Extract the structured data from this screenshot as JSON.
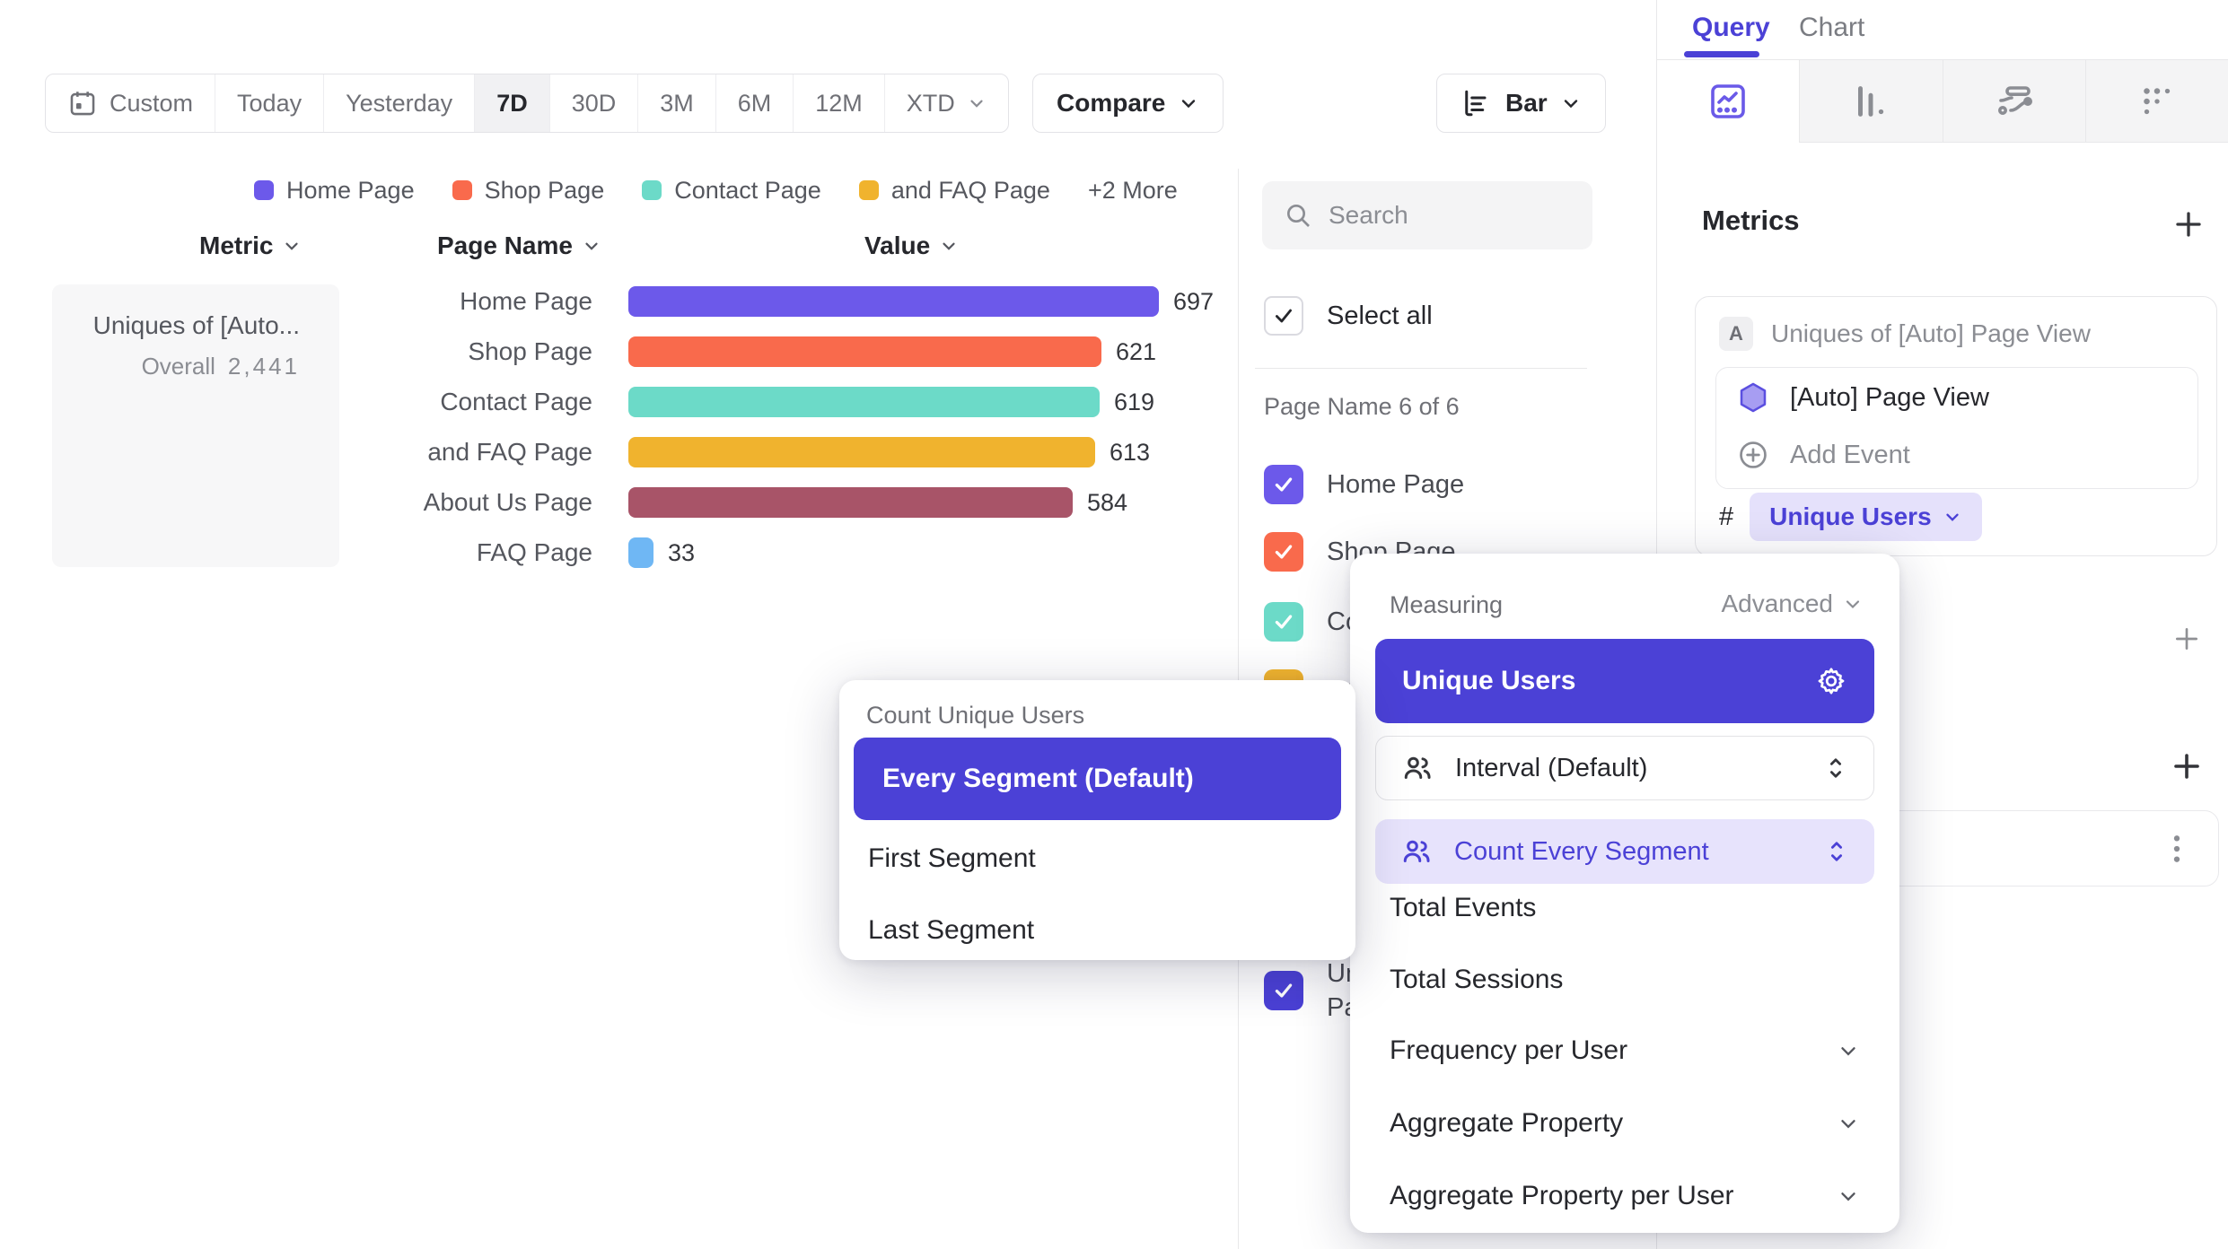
{
  "toolbar": {
    "date_ranges": [
      "Custom",
      "Today",
      "Yesterday",
      "7D",
      "30D",
      "3M",
      "6M",
      "12M",
      "XTD"
    ],
    "selected_range": "7D",
    "compare_label": "Compare",
    "chart_type_label": "Bar"
  },
  "legend": {
    "items": [
      {
        "label": "Home Page",
        "color": "#6C59EA"
      },
      {
        "label": "Shop Page",
        "color": "#F96A4C"
      },
      {
        "label": "Contact Page",
        "color": "#6CDAC8"
      },
      {
        "label": "and FAQ Page",
        "color": "#F0B32E"
      }
    ],
    "more_label": "+2 More"
  },
  "columns": {
    "metric": "Metric",
    "page_name": "Page Name",
    "value": "Value"
  },
  "metric_card": {
    "title": "Uniques of [Auto...",
    "overall_label": "Overall",
    "overall_value": "2,441"
  },
  "chart_data": {
    "type": "bar",
    "orientation": "horizontal",
    "series_name": "Uniques of [Auto] Page View",
    "categories": [
      "Home Page",
      "Shop Page",
      "Contact Page",
      "and FAQ Page",
      "About Us Page",
      "FAQ Page"
    ],
    "values": [
      697,
      621,
      619,
      613,
      584,
      33
    ],
    "colors": [
      "#6C59EA",
      "#F96A4C",
      "#6CDAC8",
      "#F0B32E",
      "#A85468",
      "#6FB7F4"
    ],
    "overall_total": 2441,
    "xlabel": "Value",
    "ylabel": "Page Name"
  },
  "filter_panel": {
    "search_placeholder": "Search",
    "select_all_label": "Select all",
    "group_label": "Page Name 6 of 6",
    "items": [
      {
        "label": "Home Page",
        "color": "#6C59EA",
        "checked": true
      },
      {
        "label": "Shop Page",
        "color": "#F96A4C",
        "checked": true
      },
      {
        "label": "Contact Page",
        "color": "#6CDAC8",
        "checked": true
      },
      {
        "label": "and FAQ Page",
        "color": "#F0B32E",
        "checked": true
      },
      {
        "label": "About Us Page",
        "color": "#A85468",
        "checked": true
      },
      {
        "label": "FAQ Page",
        "color": "#6FB7F4",
        "checked": true
      }
    ],
    "metric_item": {
      "label": "Uniques of [Auto] Page View",
      "color": "#4B41D6",
      "checked": true
    }
  },
  "query_panel": {
    "tabs": {
      "query": "Query",
      "chart": "Chart"
    },
    "metrics_header": "Metrics",
    "metric_row": {
      "badge": "A",
      "title": "Uniques of [Auto] Page View"
    },
    "event_row": {
      "name": "[Auto] Page View"
    },
    "add_event_label": "Add Event",
    "measure_prefix": "#",
    "measure_pill": "Unique Users"
  },
  "measuring_popover": {
    "title": "Measuring",
    "advanced_label": "Advanced",
    "selected": "Unique Users",
    "interval": "Interval (Default)",
    "count_mode": "Count Every Segment",
    "plain_items": [
      "Total Events",
      "Total Sessions"
    ],
    "expandable_items": [
      "Frequency per User",
      "Aggregate Property",
      "Aggregate Property per User"
    ]
  },
  "segment_popover": {
    "title": "Count Unique Users",
    "selected": "Every Segment (Default)",
    "items": [
      "First Segment",
      "Last Segment"
    ]
  }
}
